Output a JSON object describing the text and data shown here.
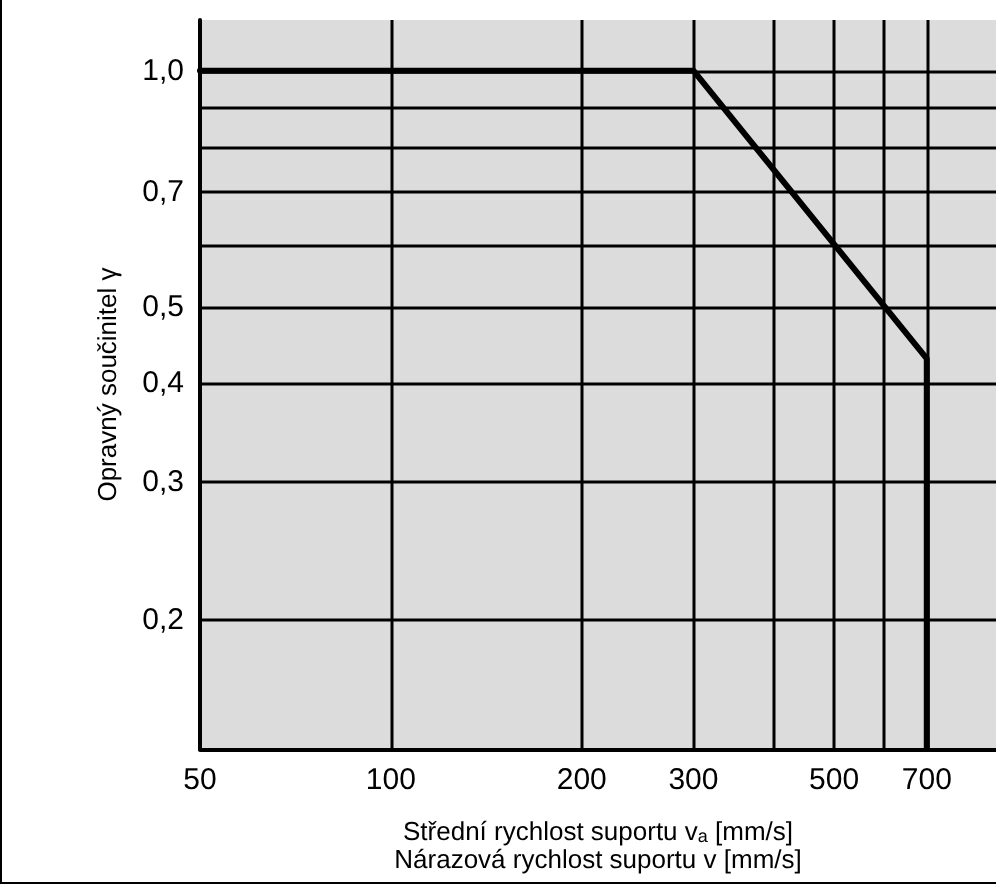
{
  "chart_data": {
    "type": "line",
    "xlabel": "Střední rychlost suportu v$_{a}$ [mm/s]\nNárazová rychlost suportu v [mm/s]",
    "ylabel": "Opravný součinitel γ",
    "series": [
      {
        "color": "#000000",
        "x": [
          50,
          300,
          700,
          700
        ],
        "values": [
          1.0,
          1.0,
          0.43,
          0.137
        ]
      }
    ],
    "log": "xy",
    "grid": true,
    "marker": "none",
    "line_style": "solid",
    "xlim": [
      50,
      900
    ],
    "xticks": [
      50,
      100,
      200,
      300,
      {
        "value": 400,
        "label": null
      },
      500,
      {
        "value": 600,
        "label": null
      },
      700
    ],
    "ylim": [
      0.137,
      1.16
    ],
    "yticks": [
      {
        "value": 0.2,
        "label": "0,2"
      },
      {
        "value": 0.3,
        "label": "0,3"
      },
      {
        "value": 0.4,
        "label": "0,4"
      },
      {
        "value": 0.5,
        "label": "0,5"
      },
      {
        "value": 0.6,
        "label": null
      },
      {
        "value": 0.7,
        "label": "0,7"
      },
      {
        "value": 0.8,
        "label": null
      },
      {
        "value": 0.9,
        "label": null
      },
      {
        "value": 1.0,
        "label": "1,0"
      }
    ]
  }
}
